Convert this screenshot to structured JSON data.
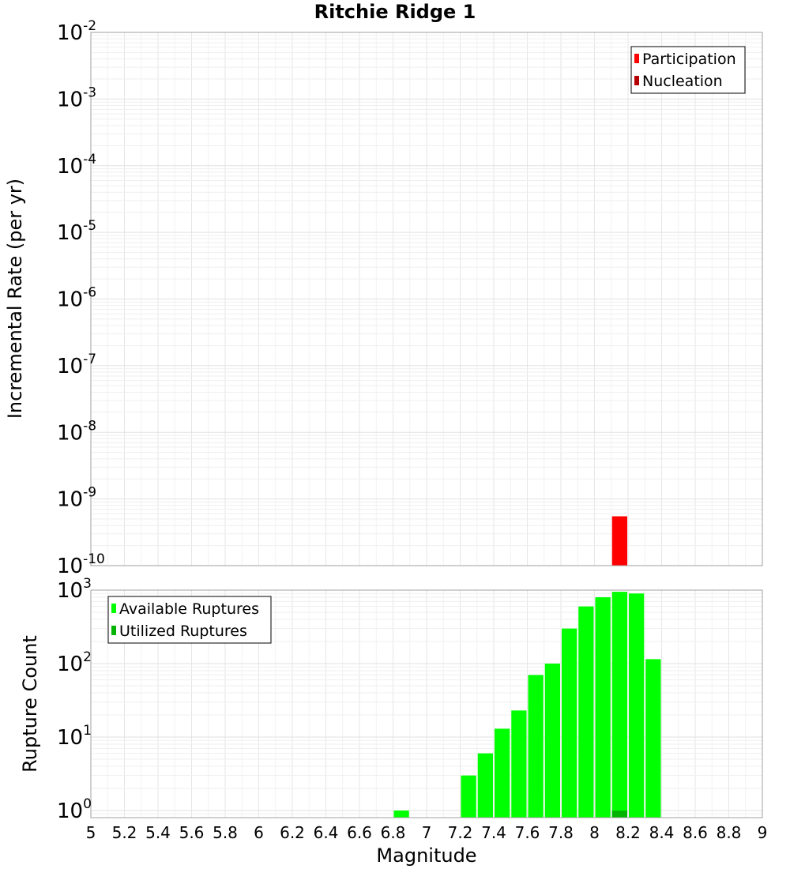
{
  "chart_data": {
    "title": "Ritchie Ridge 1",
    "xlabel": "Magnitude",
    "xlim": [
      5,
      9
    ],
    "x_ticks": [
      "5",
      "5.2",
      "5.4",
      "5.6",
      "5.8",
      "6",
      "6.2",
      "6.4",
      "6.6",
      "6.8",
      "7",
      "7.2",
      "7.4",
      "7.6",
      "7.8",
      "8",
      "8.2",
      "8.4",
      "8.6",
      "8.8",
      "9"
    ],
    "bin_width": 0.1,
    "panels": [
      {
        "type": "bar",
        "yscale": "log",
        "ylabel": "Incremental Rate (per yr)",
        "ylim": [
          1e-10,
          0.01
        ],
        "y_ticks": [
          {
            "base": "10",
            "exp": "-2"
          },
          {
            "base": "10",
            "exp": "-3"
          },
          {
            "base": "10",
            "exp": "-4"
          },
          {
            "base": "10",
            "exp": "-5"
          },
          {
            "base": "10",
            "exp": "-6"
          },
          {
            "base": "10",
            "exp": "-7"
          },
          {
            "base": "10",
            "exp": "-8"
          },
          {
            "base": "10",
            "exp": "-9"
          },
          {
            "base": "10",
            "exp": "-10"
          }
        ],
        "legend": {
          "position": "top-right",
          "entries": [
            {
              "label": "Participation",
              "color": "#ff0000"
            },
            {
              "label": "Nucleation",
              "color": "#b40000"
            }
          ]
        },
        "series": [
          {
            "name": "Participation",
            "color": "#ff0000",
            "points": [
              {
                "x": 8.15,
                "y": 5.5e-10
              }
            ]
          },
          {
            "name": "Nucleation",
            "color": "#b40000",
            "points": []
          }
        ]
      },
      {
        "type": "bar",
        "yscale": "log",
        "ylabel": "Rupture Count",
        "ylim": [
          0.8,
          1000
        ],
        "y_ticks": [
          {
            "base": "10",
            "exp": "3"
          },
          {
            "base": "10",
            "exp": "2"
          },
          {
            "base": "10",
            "exp": "1"
          },
          {
            "base": "10",
            "exp": "0"
          }
        ],
        "legend": {
          "position": "top-left",
          "entries": [
            {
              "label": "Available Ruptures",
              "color": "#00ff00"
            },
            {
              "label": "Utilized Ruptures",
              "color": "#00b400"
            }
          ]
        },
        "series": [
          {
            "name": "Available Ruptures",
            "color": "#00ff00",
            "points": [
              {
                "x": 6.85,
                "y": 1
              },
              {
                "x": 7.25,
                "y": 3
              },
              {
                "x": 7.35,
                "y": 6
              },
              {
                "x": 7.45,
                "y": 13
              },
              {
                "x": 7.55,
                "y": 23
              },
              {
                "x": 7.65,
                "y": 70
              },
              {
                "x": 7.75,
                "y": 100
              },
              {
                "x": 7.85,
                "y": 300
              },
              {
                "x": 7.95,
                "y": 600
              },
              {
                "x": 8.05,
                "y": 800
              },
              {
                "x": 8.15,
                "y": 950
              },
              {
                "x": 8.25,
                "y": 900
              },
              {
                "x": 8.35,
                "y": 115
              }
            ]
          },
          {
            "name": "Utilized Ruptures",
            "color": "#00b400",
            "points": [
              {
                "x": 8.15,
                "y": 1
              }
            ]
          }
        ]
      }
    ]
  }
}
